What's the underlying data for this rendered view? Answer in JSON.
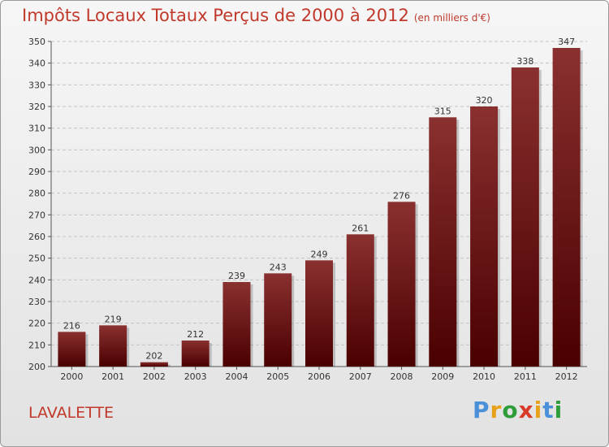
{
  "title": "Impôts Locaux Totaux Perçus de 2000 à 2012",
  "unit": "(en milliers d'€)",
  "place": "LAVALETTE",
  "logo": {
    "text": "Proxiti",
    "colors": [
      "#4a90d9",
      "#e8a21a",
      "#2e9d3a",
      "#d93b2b",
      "#e8a21a",
      "#4a90d9",
      "#2e9d3a"
    ]
  },
  "colors": {
    "title": "#c0392b",
    "bar_top": "#8a3030",
    "bar_bottom": "#4a0000"
  },
  "chart_data": {
    "type": "bar",
    "title": "Impôts Locaux Totaux Perçus de 2000 à 2012",
    "xlabel": "",
    "ylabel": "",
    "categories": [
      "2000",
      "2001",
      "2002",
      "2003",
      "2004",
      "2005",
      "2006",
      "2007",
      "2008",
      "2009",
      "2010",
      "2011",
      "2012"
    ],
    "values": [
      216,
      219,
      202,
      212,
      239,
      243,
      249,
      261,
      276,
      315,
      320,
      338,
      347
    ],
    "ylim": [
      200,
      350
    ],
    "yticks": [
      200,
      210,
      220,
      230,
      240,
      250,
      260,
      270,
      280,
      290,
      300,
      310,
      320,
      330,
      340,
      350
    ],
    "grid": true
  }
}
